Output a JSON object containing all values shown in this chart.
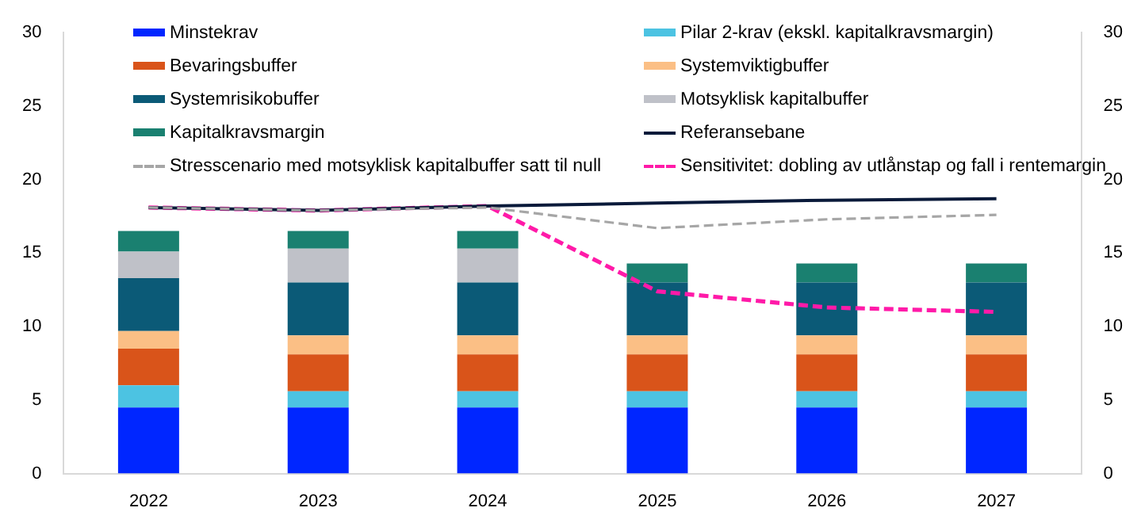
{
  "chart_data": {
    "type": "bar",
    "stacked": true,
    "categories": [
      "2022",
      "2023",
      "2024",
      "2025",
      "2026",
      "2027"
    ],
    "series": [
      {
        "name": "Minstekrav",
        "color": "#0026ff",
        "values": [
          4.5,
          4.5,
          4.5,
          4.5,
          4.5,
          4.5
        ]
      },
      {
        "name": "Pilar 2-krav (ekskl. kapitalkravsmargin)",
        "color": "#4cc3e2",
        "values": [
          1.5,
          1.1,
          1.1,
          1.1,
          1.1,
          1.1
        ]
      },
      {
        "name": "Bevaringsbuffer",
        "color": "#d9541a",
        "values": [
          2.5,
          2.5,
          2.5,
          2.5,
          2.5,
          2.5
        ]
      },
      {
        "name": "Systemviktigbuffer",
        "color": "#fbbf85",
        "values": [
          1.2,
          1.3,
          1.3,
          1.3,
          1.3,
          1.3
        ]
      },
      {
        "name": "Systemrisikobuffer",
        "color": "#0b5a77",
        "values": [
          3.6,
          3.6,
          3.6,
          3.6,
          3.6,
          3.6
        ]
      },
      {
        "name": "Motsyklisk kapitalbuffer",
        "color": "#bfc1c8",
        "values": [
          1.8,
          2.3,
          2.3,
          0,
          0,
          0
        ]
      },
      {
        "name": "Kapitalkravsmargin",
        "color": "#1a8070",
        "values": [
          1.4,
          1.2,
          1.2,
          1.3,
          1.3,
          1.3
        ]
      },
      {
        "name": "Referansebane",
        "type": "line",
        "color": "#0a1a3a",
        "line_style": "solid",
        "values": [
          18.1,
          17.9,
          18.2,
          18.4,
          18.6,
          18.7
        ]
      },
      {
        "name": "Stresscenario med motsyklisk kapitalbuffer satt til null",
        "type": "line",
        "color": "#a6a6a6",
        "line_style": "dashed",
        "values": [
          18.1,
          17.9,
          18.1,
          16.7,
          17.3,
          17.6
        ]
      },
      {
        "name": "Sensitivitet: dobling av utlånstap og fall i rentemargin",
        "type": "line",
        "color": "#ff1aa8",
        "line_style": "dashed",
        "values": [
          18.1,
          17.9,
          18.2,
          12.4,
          11.3,
          11.0
        ]
      }
    ],
    "ylim": [
      0,
      30
    ],
    "yticks": [
      0,
      5,
      10,
      15,
      20,
      25,
      30
    ],
    "y2lim": [
      0,
      30
    ],
    "y2ticks": [
      0,
      5,
      10,
      15,
      20,
      25,
      30
    ],
    "grid": false,
    "legend": "top",
    "marker": "none"
  }
}
